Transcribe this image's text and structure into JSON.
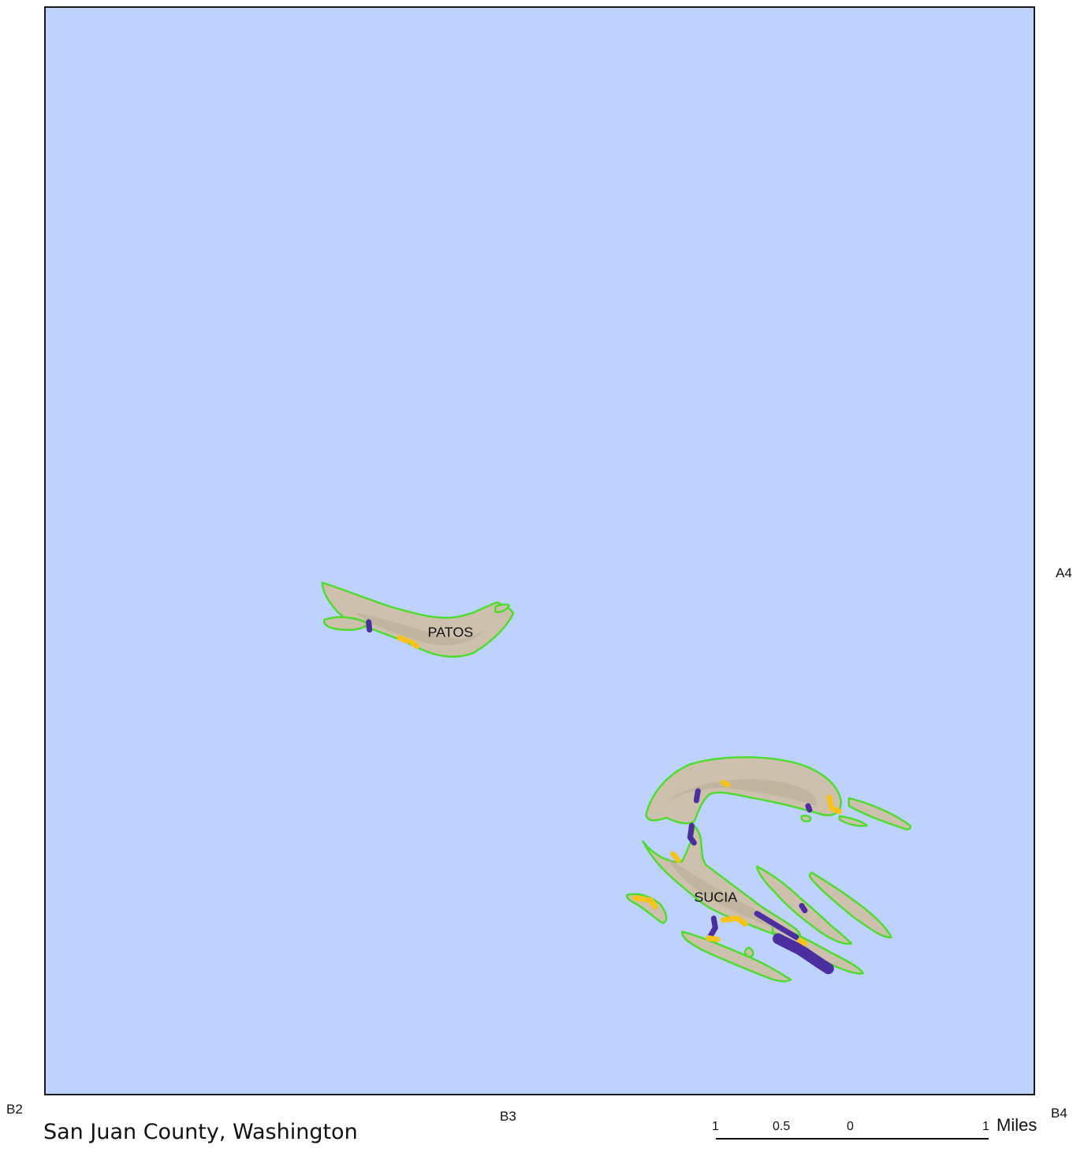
{
  "map": {
    "colors": {
      "water": "#bdd3fd",
      "land": "#cdc1ad",
      "shoreline_outline": "#4cdc2b",
      "purple_segments": "#4b2ea0",
      "yellow_segments": "#f5c31c"
    },
    "islands": [
      {
        "name": "PATOS"
      },
      {
        "name": "SUCIA"
      }
    ]
  },
  "grid_labels": {
    "a4": "A4",
    "b2": "B2",
    "b3": "B3",
    "b4": "B4"
  },
  "footer": {
    "county": "San Juan County, Washington"
  },
  "scale": {
    "ticks": [
      "1",
      "0.5",
      "0",
      "1"
    ],
    "units": "Miles"
  }
}
